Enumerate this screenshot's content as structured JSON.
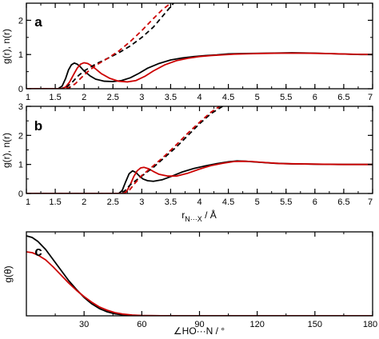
{
  "chart_data": [
    {
      "panel": "a",
      "type": "line",
      "ylabel": "g(r), n(r)",
      "xlabel": "",
      "xlim": [
        1,
        7
      ],
      "ylim": [
        0,
        2.5
      ],
      "xticks": [
        "1",
        "1.5",
        "2",
        "2.5",
        "3",
        "3.5",
        "4",
        "4.5",
        "5",
        "5.5",
        "6",
        "6.5",
        "7"
      ],
      "yticks": [
        "0",
        "1",
        "2"
      ],
      "series": [
        {
          "color": "#000000",
          "dash": "solid",
          "x": [
            1.0,
            1.55,
            1.62,
            1.68,
            1.73,
            1.78,
            1.83,
            1.88,
            1.93,
            2.0,
            2.1,
            2.2,
            2.35,
            2.5,
            2.65,
            2.8,
            2.95,
            3.1,
            3.3,
            3.5,
            3.7,
            3.9,
            4.1,
            4.3,
            4.5,
            4.8,
            5.2,
            5.6,
            6.0,
            6.4,
            6.8,
            7.0
          ],
          "y": [
            0,
            0,
            0.08,
            0.3,
            0.55,
            0.7,
            0.75,
            0.72,
            0.65,
            0.52,
            0.38,
            0.28,
            0.22,
            0.21,
            0.24,
            0.32,
            0.45,
            0.6,
            0.74,
            0.84,
            0.9,
            0.94,
            0.97,
            0.99,
            1.02,
            1.03,
            1.04,
            1.05,
            1.04,
            1.02,
            1.0,
            1.0
          ]
        },
        {
          "color": "#cc0000",
          "dash": "solid",
          "x": [
            1.0,
            1.6,
            1.68,
            1.75,
            1.82,
            1.88,
            1.94,
            2.0,
            2.06,
            2.12,
            2.2,
            2.3,
            2.45,
            2.6,
            2.75,
            2.9,
            3.05,
            3.2,
            3.4,
            3.6,
            3.8,
            4.0,
            4.2,
            4.4,
            4.6,
            5.0,
            5.4,
            5.8,
            6.2,
            6.6,
            7.0
          ],
          "y": [
            0,
            0,
            0.05,
            0.2,
            0.42,
            0.6,
            0.72,
            0.76,
            0.74,
            0.68,
            0.58,
            0.44,
            0.3,
            0.22,
            0.2,
            0.24,
            0.36,
            0.52,
            0.7,
            0.82,
            0.89,
            0.94,
            0.97,
            0.99,
            1.01,
            1.03,
            1.04,
            1.04,
            1.03,
            1.01,
            1.0
          ]
        },
        {
          "color": "#000000",
          "dash": "dashed",
          "x": [
            1.0,
            1.6,
            1.7,
            1.8,
            1.9,
            2.0,
            2.2,
            2.4,
            2.6,
            2.8,
            3.0,
            3.2,
            3.4,
            3.55
          ],
          "y": [
            0,
            0,
            0.05,
            0.2,
            0.38,
            0.52,
            0.72,
            0.88,
            1.05,
            1.25,
            1.5,
            1.8,
            2.2,
            2.5
          ]
        },
        {
          "color": "#cc0000",
          "dash": "dashed",
          "x": [
            1.0,
            1.65,
            1.75,
            1.85,
            1.95,
            2.05,
            2.2,
            2.4,
            2.6,
            2.8,
            3.0,
            3.2,
            3.35,
            3.5
          ],
          "y": [
            0,
            0,
            0.04,
            0.15,
            0.32,
            0.48,
            0.68,
            0.88,
            1.1,
            1.38,
            1.7,
            2.05,
            2.3,
            2.5
          ]
        }
      ]
    },
    {
      "panel": "b",
      "type": "line",
      "ylabel": "g(r), n(r)",
      "xlabel": "r_N···X / Å",
      "xlim": [
        1,
        7
      ],
      "ylim": [
        0,
        3
      ],
      "xticks": [
        "1",
        "1.5",
        "2",
        "2.5",
        "3",
        "3.5",
        "4",
        "4.5",
        "5",
        "5.5",
        "6",
        "6.5",
        "7"
      ],
      "yticks": [
        "0",
        "1",
        "2",
        "3"
      ],
      "series": [
        {
          "color": "#000000",
          "dash": "solid",
          "x": [
            1.0,
            2.6,
            2.66,
            2.72,
            2.78,
            2.84,
            2.9,
            2.96,
            3.02,
            3.1,
            3.2,
            3.35,
            3.5,
            3.7,
            3.9,
            4.1,
            4.3,
            4.5,
            4.65,
            4.8,
            5.0,
            5.3,
            5.6,
            6.0,
            6.4,
            7.0
          ],
          "y": [
            0,
            0,
            0.1,
            0.4,
            0.68,
            0.78,
            0.72,
            0.6,
            0.5,
            0.44,
            0.42,
            0.47,
            0.58,
            0.74,
            0.86,
            0.95,
            1.03,
            1.09,
            1.12,
            1.11,
            1.08,
            1.04,
            1.02,
            1.01,
            1.0,
            1.0
          ]
        },
        {
          "color": "#cc0000",
          "dash": "solid",
          "x": [
            1.0,
            2.68,
            2.74,
            2.8,
            2.86,
            2.92,
            2.98,
            3.04,
            3.12,
            3.2,
            3.3,
            3.45,
            3.6,
            3.8,
            4.0,
            4.2,
            4.4,
            4.6,
            4.75,
            4.9,
            5.1,
            5.4,
            5.7,
            6.0,
            6.5,
            7.0
          ],
          "y": [
            0,
            0,
            0.08,
            0.3,
            0.58,
            0.78,
            0.88,
            0.9,
            0.85,
            0.76,
            0.66,
            0.6,
            0.6,
            0.7,
            0.84,
            0.96,
            1.04,
            1.1,
            1.11,
            1.1,
            1.07,
            1.03,
            1.02,
            1.01,
            1.0,
            1.0
          ]
        },
        {
          "color": "#000000",
          "dash": "dashed",
          "x": [
            1.0,
            2.6,
            2.7,
            2.8,
            3.0,
            3.2,
            3.4,
            3.6,
            3.8,
            4.0,
            4.2,
            4.4
          ],
          "y": [
            0,
            0,
            0.08,
            0.3,
            0.6,
            0.9,
            1.25,
            1.6,
            2.0,
            2.4,
            2.75,
            3.0
          ]
        },
        {
          "color": "#cc0000",
          "dash": "dashed",
          "x": [
            1.0,
            2.68,
            2.78,
            2.88,
            3.0,
            3.2,
            3.4,
            3.6,
            3.8,
            4.0,
            4.2,
            4.35
          ],
          "y": [
            0,
            0,
            0.1,
            0.35,
            0.62,
            0.95,
            1.3,
            1.68,
            2.08,
            2.45,
            2.8,
            3.0
          ]
        }
      ]
    },
    {
      "panel": "c",
      "type": "line",
      "ylabel": "g(θ)",
      "xlabel": "∠HO···N / °",
      "xlim": [
        0,
        180
      ],
      "ylim": [
        0,
        1.05
      ],
      "xticks": [
        "30",
        "60",
        "90",
        "120",
        "150",
        "180"
      ],
      "yticks": [],
      "series": [
        {
          "color": "#000000",
          "dash": "solid",
          "x": [
            0,
            3,
            6,
            10,
            14,
            18,
            22,
            26,
            30,
            34,
            38,
            42,
            46,
            50,
            55,
            60,
            70,
            80,
            180
          ],
          "y": [
            1.0,
            0.98,
            0.93,
            0.83,
            0.7,
            0.57,
            0.44,
            0.33,
            0.23,
            0.15,
            0.09,
            0.05,
            0.025,
            0.012,
            0.005,
            0.002,
            0.0005,
            0,
            0
          ]
        },
        {
          "color": "#cc0000",
          "dash": "solid",
          "x": [
            0,
            3,
            6,
            10,
            14,
            18,
            22,
            26,
            30,
            34,
            38,
            42,
            46,
            50,
            55,
            60,
            70,
            80,
            180
          ],
          "y": [
            0.8,
            0.79,
            0.76,
            0.7,
            0.61,
            0.51,
            0.41,
            0.32,
            0.24,
            0.17,
            0.11,
            0.07,
            0.04,
            0.022,
            0.01,
            0.004,
            0.001,
            0,
            0
          ]
        }
      ]
    }
  ]
}
